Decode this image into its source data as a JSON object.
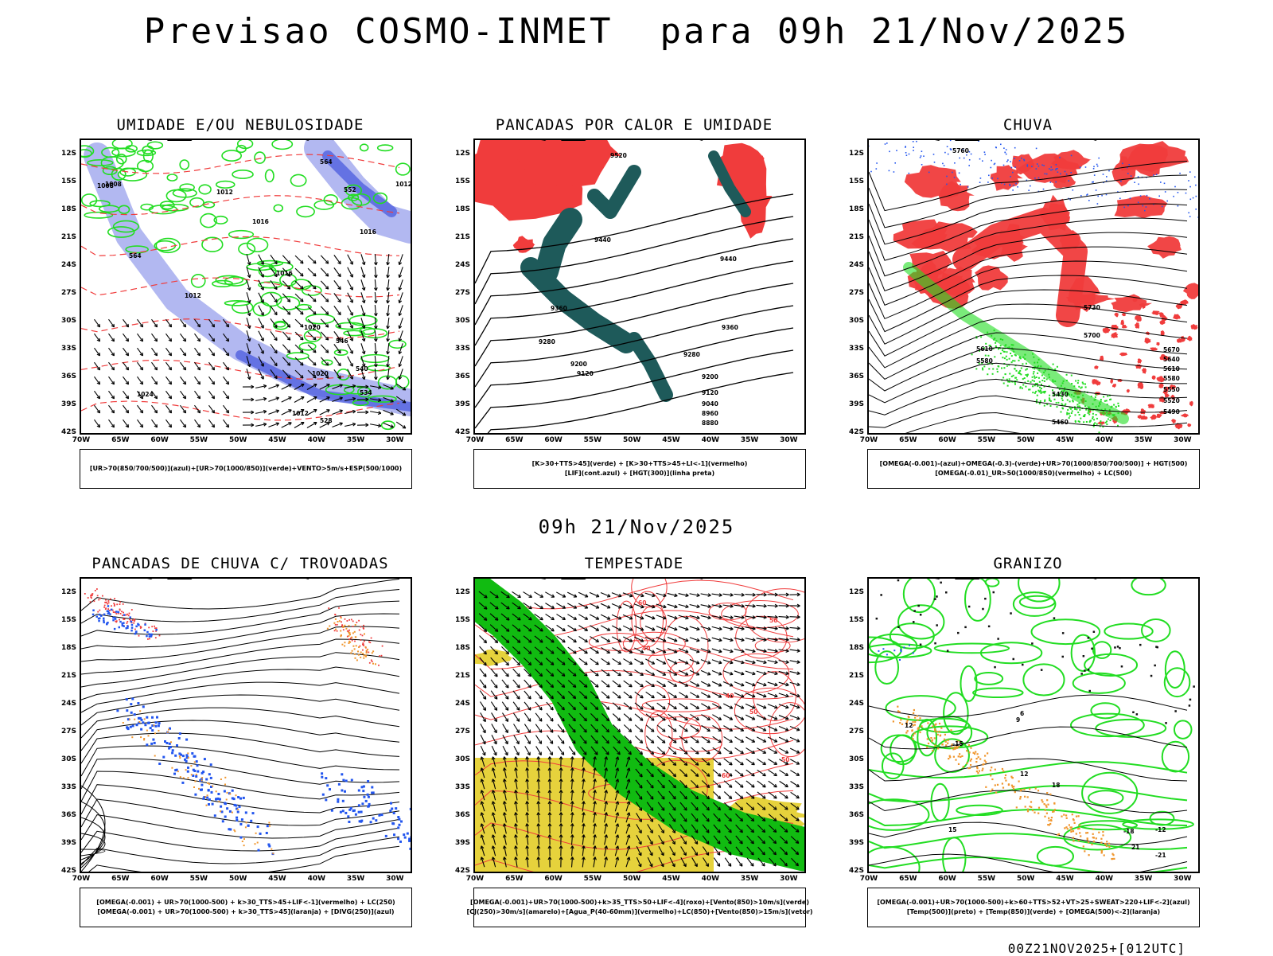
{
  "title": "Previsao COSMO-INMET  para 09h 21/Nov/2025",
  "mid_time": "09h 21/Nov/2025",
  "footer": "00Z21NOV2025+[012UTC]",
  "latitudes": [
    "12S",
    "15S",
    "18S",
    "21S",
    "24S",
    "27S",
    "30S",
    "33S",
    "36S",
    "39S",
    "42S"
  ],
  "longitudes": [
    "70W",
    "65W",
    "60W",
    "55W",
    "50W",
    "45W",
    "40W",
    "35W",
    "30W"
  ],
  "colors": {
    "red": "#f03c3c",
    "green": "#22dd22",
    "blue": "#2255ee",
    "lavender": "#aab0f0",
    "teal": "#1e5a5a",
    "yellow": "#e6d23c",
    "orange": "#f0962d",
    "dgreen": "#11bb11"
  },
  "panels": [
    {
      "id": "umidade",
      "title": "UMIDADE E/OU NEBULOSIDADE",
      "legend": [
        "[UR>70(850/700/500)](azul)+[UR>70(1000/850)](verde)+VENTO>5m/s+ESP(500/1000)"
      ],
      "labels": [
        "1008",
        "1012",
        "1016",
        "1016",
        "1012",
        "1020",
        "1020",
        "1024",
        "1008",
        "1012",
        "1016",
        "1012",
        "564",
        "564",
        "552",
        "546",
        "540",
        "534",
        "528"
      ]
    },
    {
      "id": "pancadas-calor",
      "title": "PANCADAS POR CALOR E UMIDADE",
      "legend": [
        "[K>30+TTS>45](verde) + [K>30+TTS>45+LI<-1](vermelho)",
        "[LIF](cont.azul) + [HGT(300)](linha preta)"
      ],
      "labels": [
        "9520",
        "9440",
        "9440",
        "9360",
        "9360",
        "9280",
        "9280",
        "9200",
        "9200",
        "9120",
        "9120",
        "9040",
        "8960",
        "8880"
      ]
    },
    {
      "id": "chuva",
      "title": "CHUVA",
      "legend": [
        "[OMEGA(-0.001)-(azul)+OMEGA(-0.3)-(verde)+UR>70(1000/850/700/500)] + HGT(500)",
        "[OMEGA(-0.01)_UR>50(1000/850)(vermelho) + LC(500)"
      ],
      "labels": [
        "5760",
        "5730",
        "5700",
        "5670",
        "5640",
        "5610",
        "5580",
        "5550",
        "5520",
        "5490",
        "5460",
        "5430",
        "5610",
        "5580"
      ]
    },
    {
      "id": "trovoadas",
      "title": "PANCADAS DE CHUVA C/ TROVOADAS",
      "legend": [
        "[OMEGA(-0.001) + UR>70(1000-500) + k>30_TTS>45+LIF<-1](vermelho) + LC(250)",
        "[OMEGA(-0.001) + UR>70(1000-500) + k>30_TTS>45](laranja) + [DIVG(250)](azul)"
      ],
      "labels": []
    },
    {
      "id": "tempestade",
      "title": "TEMPESTADE",
      "legend": [
        "[OMEGA(-0.001)+UR>70(1000-500)+k>35_TTS>50+LIF<-4](roxo)+[Vento(850)>10m/s](verde)",
        "[CJ(250)>30m/s](amarelo)+[Agua_P(40-60mm)](vermelho)+LC(850)+[Vento(850)>15m/s](vetor)"
      ],
      "labels": [
        "60",
        "50",
        "40",
        "50",
        "60",
        "40",
        "50"
      ]
    },
    {
      "id": "granizo",
      "title": "GRANIZO",
      "legend": [
        "[OMEGA(-0.001)+UR>70(1000-500)+k>60+TTS>52+VT>25+SWEAT>220+LIF<-2](azul)",
        "[Temp(500)](preto) + [Temp(850)](verde) + [OMEGA(500)<-2](laranja)"
      ],
      "labels": [
        "12",
        "9",
        "12",
        "15",
        "18",
        "21",
        "-18",
        "-15",
        "-12",
        "6",
        "-21"
      ]
    }
  ]
}
